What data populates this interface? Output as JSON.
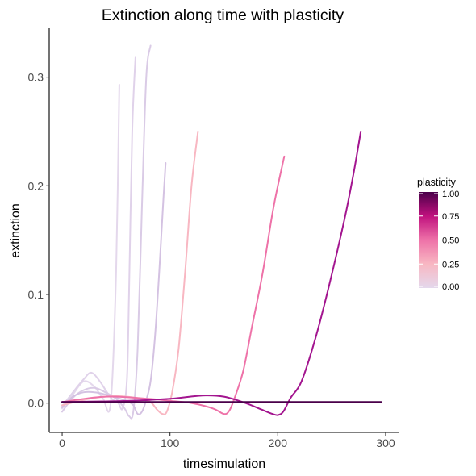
{
  "chart_data": {
    "type": "line",
    "title": "Extinction along time with plasticity",
    "xlabel": "timesimulation",
    "ylabel": "extinction",
    "xlim": [
      -12,
      312
    ],
    "ylim": [
      -0.027,
      0.345
    ],
    "x_ticks": [
      0,
      100,
      200,
      300
    ],
    "x_tick_labels": [
      "0",
      "100",
      "200",
      "300"
    ],
    "y_ticks": [
      0.0,
      0.1,
      0.2,
      0.3
    ],
    "y_tick_labels": [
      "0.0",
      "0.1",
      "0.2",
      "0.3"
    ],
    "grid": false,
    "legend": {
      "title": "plasticity",
      "placement": "right",
      "type": "colorbar",
      "ticks": [
        0.0,
        0.25,
        0.5,
        0.75,
        1.0
      ],
      "tick_labels": [
        "0.00",
        "0.25",
        "0.50",
        "0.75",
        "1.00"
      ],
      "colors": [
        "#E4D8EC",
        "#F8B7C2",
        "#EE72A8",
        "#C0117E",
        "#4A004A"
      ]
    },
    "series": [
      {
        "plasticity": 0.0,
        "color": "#E4D8EC",
        "x": [
          0,
          10,
          20,
          30,
          38,
          45,
          50,
          53
        ],
        "y": [
          -0.005,
          0.008,
          0.02,
          0.015,
          0.004,
          0.0,
          0.12,
          0.293
        ]
      },
      {
        "plasticity": 0.05,
        "color": "#E0D2EA",
        "x": [
          0,
          10,
          20,
          27,
          35,
          45,
          52,
          56,
          60,
          62,
          65,
          68
        ],
        "y": [
          -0.003,
          0.01,
          0.022,
          0.028,
          0.02,
          0.005,
          0.0,
          -0.005,
          0.02,
          0.1,
          0.25,
          0.318
        ]
      },
      {
        "plasticity": 0.1,
        "color": "#DACBE6",
        "x": [
          0,
          10,
          20,
          30,
          40,
          50,
          58,
          62,
          66,
          70,
          74,
          78,
          82
        ],
        "y": [
          -0.008,
          0.005,
          0.012,
          0.014,
          0.01,
          0.004,
          -0.005,
          -0.012,
          -0.008,
          0.05,
          0.18,
          0.3,
          0.329
        ]
      },
      {
        "plasticity": 0.15,
        "color": "#D4C2E2",
        "x": [
          0,
          10,
          20,
          30,
          40,
          50,
          60,
          66,
          70,
          74,
          78,
          82,
          86,
          90,
          94,
          96
        ],
        "y": [
          -0.004,
          0.006,
          0.01,
          0.01,
          0.008,
          0.005,
          0.002,
          -0.002,
          -0.01,
          -0.008,
          0.003,
          0.02,
          0.06,
          0.12,
          0.19,
          0.221
        ]
      },
      {
        "plasticity": 0.25,
        "color": "#F8B7C2",
        "x": [
          0,
          20,
          40,
          60,
          80,
          88,
          93,
          97,
          102,
          108,
          114,
          120,
          126
        ],
        "y": [
          -0.002,
          0.003,
          0.006,
          0.006,
          0.002,
          -0.006,
          -0.01,
          -0.008,
          0.01,
          0.05,
          0.12,
          0.2,
          0.25
        ]
      },
      {
        "plasticity": 0.5,
        "color": "#EE72A8",
        "x": [
          0,
          40,
          80,
          100,
          120,
          140,
          150,
          155,
          160,
          168,
          176,
          186,
          196,
          206
        ],
        "y": [
          0.001,
          0.006,
          0.004,
          0.002,
          0.0,
          -0.005,
          -0.01,
          -0.007,
          0.005,
          0.03,
          0.07,
          0.12,
          0.18,
          0.227
        ]
      },
      {
        "plasticity": 0.75,
        "color": "#A3158F",
        "x": [
          0,
          60,
          100,
          130,
          150,
          170,
          185,
          195,
          200,
          205,
          212,
          222,
          235,
          248,
          262,
          270,
          277
        ],
        "y": [
          0.001,
          0.002,
          0.004,
          0.007,
          0.006,
          0.0,
          -0.006,
          -0.01,
          -0.011,
          -0.008,
          0.005,
          0.02,
          0.06,
          0.11,
          0.17,
          0.21,
          0.25
        ]
      },
      {
        "plasticity": 1.0,
        "color": "#4A004A",
        "x": [
          0,
          100,
          200,
          296
        ],
        "y": [
          0.001,
          0.001,
          0.001,
          0.001
        ]
      }
    ]
  }
}
